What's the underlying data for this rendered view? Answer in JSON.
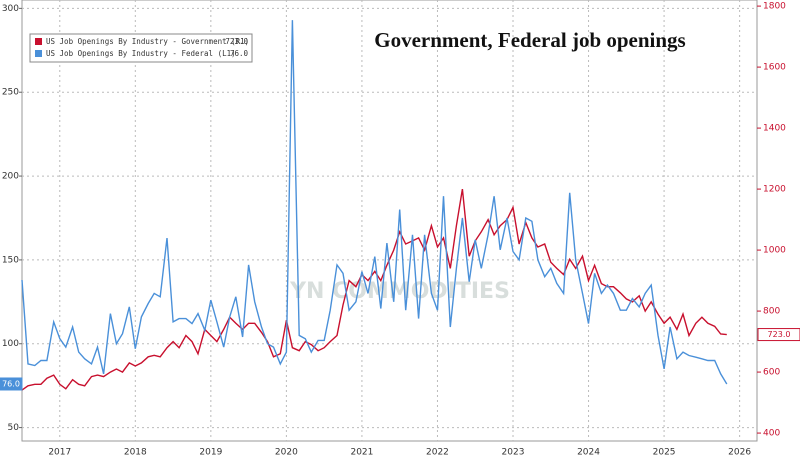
{
  "chart_data": {
    "type": "line",
    "title": "Government, Federal job openings",
    "watermark": "YN COMMODITIES",
    "x": [
      2017,
      2017.08,
      2017.17,
      2017.25,
      2017.33,
      2017.42,
      2017.5,
      2017.58,
      2017.67,
      2017.75,
      2017.83,
      2017.92,
      2018,
      2018.08,
      2018.17,
      2018.25,
      2018.33,
      2018.42,
      2018.5,
      2018.58,
      2018.67,
      2018.75,
      2018.83,
      2018.92,
      2019,
      2019.08,
      2019.17,
      2019.25,
      2019.33,
      2019.42,
      2019.5,
      2019.58,
      2019.67,
      2019.75,
      2019.83,
      2019.92,
      2020,
      2020.08,
      2020.17,
      2020.25,
      2020.33,
      2020.42,
      2020.5,
      2020.58,
      2020.67,
      2020.75,
      2020.83,
      2020.92,
      2021,
      2021.08,
      2021.17,
      2021.25,
      2021.33,
      2021.42,
      2021.5,
      2021.58,
      2021.67,
      2021.75,
      2021.83,
      2021.92,
      2022,
      2022.08,
      2022.17,
      2022.25,
      2022.33,
      2022.42,
      2022.5,
      2022.58,
      2022.67,
      2022.75,
      2022.83,
      2022.92,
      2023,
      2023.08,
      2023.17,
      2023.25,
      2023.33,
      2023.42,
      2023.5,
      2023.58,
      2023.67,
      2023.75,
      2023.83,
      2023.92,
      2024,
      2024.08,
      2024.17,
      2024.25,
      2024.33,
      2024.42,
      2024.5,
      2024.58,
      2024.67,
      2024.75,
      2024.83,
      2024.92,
      2025,
      2025.08,
      2025.17,
      2025.25,
      2025.33,
      2025.42,
      2025.5,
      2025.58,
      2025.67,
      2025.75,
      2025.83,
      2025.92,
      2026,
      2026.08,
      2026.17,
      2026.25,
      2026.33
    ],
    "series": [
      {
        "name": "US Job Openings By Industry - Government (R1)",
        "last_value_label": "723.0",
        "color": "#c8102e",
        "axis": "y2",
        "values": [
          541,
          555,
          560,
          560,
          580,
          590,
          560,
          545,
          575,
          560,
          555,
          585,
          590,
          585,
          600,
          610,
          600,
          630,
          620,
          630,
          650,
          655,
          650,
          680,
          700,
          680,
          720,
          700,
          660,
          740,
          720,
          700,
          740,
          780,
          760,
          740,
          760,
          760,
          730,
          700,
          650,
          660,
          770,
          680,
          670,
          700,
          690,
          670,
          680,
          700,
          720,
          820,
          900,
          880,
          920,
          900,
          930,
          900,
          950,
          1000,
          1060,
          1020,
          1030,
          1040,
          1000,
          1080,
          1010,
          1040,
          940,
          1080,
          1200,
          980,
          1030,
          1060,
          1100,
          1050,
          1080,
          1100,
          1140,
          1020,
          1090,
          1040,
          1010,
          1020,
          960,
          940,
          920,
          970,
          940,
          980,
          900,
          950,
          890,
          880,
          880,
          860,
          840,
          830,
          850,
          800,
          830,
          790,
          760,
          780,
          740,
          790,
          720,
          760,
          780,
          760,
          750,
          725,
          723
        ]
      },
      {
        "name": "US Job Openings By Industry - Federal (L1)",
        "last_value_label": "76.0",
        "color": "#4a90d9",
        "axis": "y",
        "values": [
          138,
          88,
          87,
          90,
          90,
          113,
          103,
          98,
          110,
          95,
          91,
          88,
          98,
          82,
          118,
          100,
          106,
          122,
          97,
          116,
          124,
          130,
          128,
          163,
          113,
          115,
          115,
          112,
          118,
          108,
          126,
          113,
          98,
          116,
          128,
          104,
          147,
          125,
          110,
          100,
          98,
          88,
          95,
          293,
          105,
          103,
          95,
          102,
          102,
          120,
          147,
          142,
          120,
          125,
          143,
          130,
          152,
          121,
          160,
          125,
          180,
          120,
          165,
          115,
          165,
          130,
          120,
          188,
          110,
          145,
          175,
          137,
          162,
          145,
          165,
          188,
          156,
          175,
          155,
          150,
          175,
          173,
          150,
          140,
          145,
          136,
          130,
          190,
          150,
          130,
          112,
          142,
          130,
          135,
          130,
          120,
          120,
          127,
          122,
          130,
          135,
          105,
          85,
          110,
          91,
          95,
          93,
          92,
          91,
          90,
          90,
          82,
          76
        ]
      }
    ],
    "xlim": [
      2017,
      2026.73
    ],
    "xticks": [
      {
        "value": 2017.5,
        "label": "2017"
      },
      {
        "value": 2018.5,
        "label": "2018"
      },
      {
        "value": 2019.5,
        "label": "2019"
      },
      {
        "value": 2020.5,
        "label": "2020"
      },
      {
        "value": 2021.5,
        "label": "2021"
      },
      {
        "value": 2022.5,
        "label": "2022"
      },
      {
        "value": 2023.5,
        "label": "2023"
      },
      {
        "value": 2024.5,
        "label": "2024"
      },
      {
        "value": 2025.5,
        "label": "2025"
      },
      {
        "value": 2026.5,
        "label": "2026"
      }
    ],
    "ylim": [
      42,
      305
    ],
    "yticks": [
      50,
      100,
      150,
      200,
      250,
      300
    ],
    "y2lim": [
      374,
      1820
    ],
    "y2ticks": [
      400,
      600,
      800,
      1000,
      1200,
      1400,
      1600,
      1800
    ],
    "grid": true
  }
}
